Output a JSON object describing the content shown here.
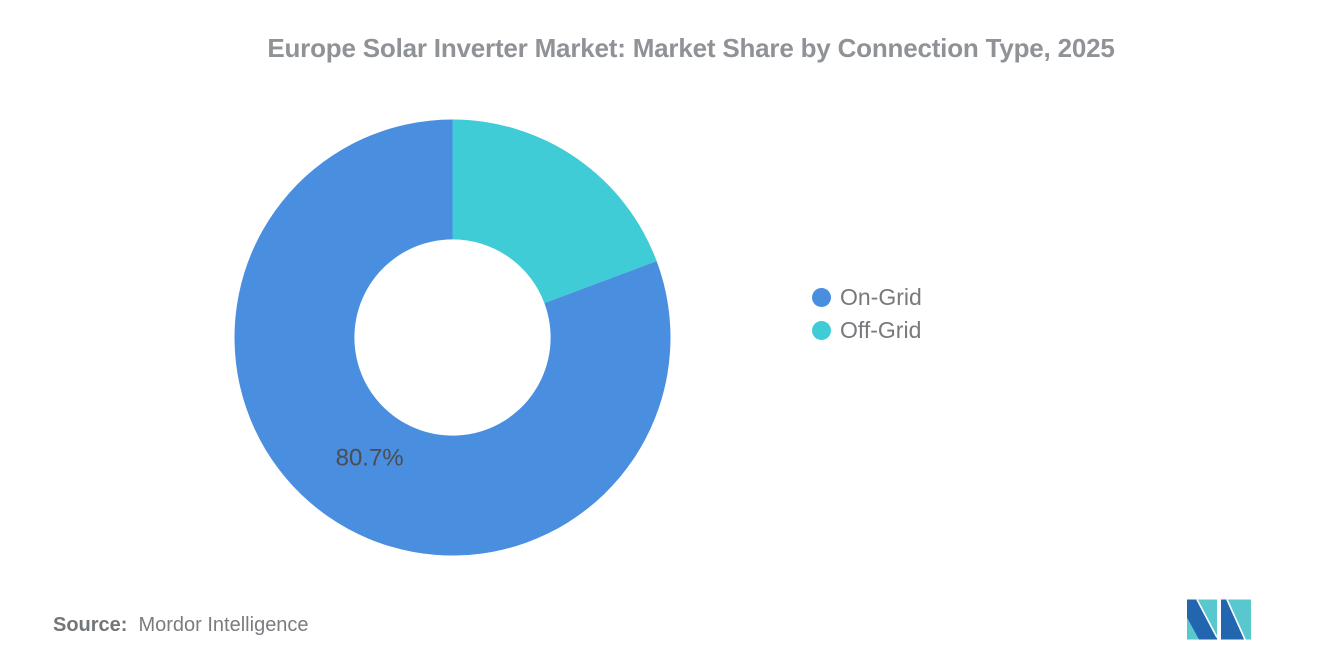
{
  "title": "Europe Solar Inverter Market: Market Share by Connection Type, 2025",
  "chart_data": {
    "type": "pie",
    "subtype": "donut",
    "title": "Europe Solar Inverter Market: Market Share by Connection Type, 2025",
    "legend_position": "right",
    "inner_radius_ratio": 0.45,
    "start_angle_deg": 0,
    "slices": [
      {
        "label": "On-Grid",
        "value": 80.7,
        "color": "#4a8ee0",
        "data_label": "80.7%"
      },
      {
        "label": "Off-Grid",
        "value": 19.3,
        "color": "#3fccd6",
        "data_label": ""
      }
    ],
    "data_label_color": "#4b4d50",
    "data_label_font_px": 24
  },
  "source": {
    "prefix": "Source:",
    "text": "Mordor Intelligence"
  },
  "logo": {
    "name": "mordor-intelligence-logo",
    "teal": "#58c8ce",
    "blue": "#2166ae"
  }
}
